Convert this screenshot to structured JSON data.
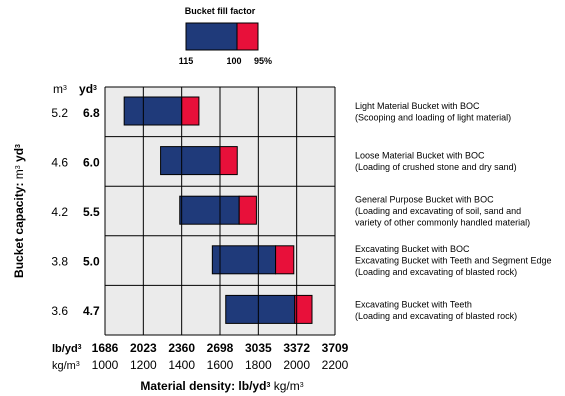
{
  "chart_data": {
    "type": "bar",
    "orientation": "horizontal-range",
    "legend": {
      "title": "Bucket fill factor",
      "labels": [
        "115",
        "100",
        "95%"
      ],
      "colors": {
        "fill_115_100": "#1f3a7a",
        "fill_100_95": "#e8103a"
      }
    },
    "y_axis": {
      "title_prefix": "Bucket capacity:",
      "title_unit1": "m",
      "title_unit1_sup": "3",
      "title_unit2": "yd",
      "title_unit2_sup": "3",
      "col1_header": "m",
      "col1_header_sup": "3",
      "col2_header": "yd",
      "col2_header_sup": "3"
    },
    "x_axis": {
      "title_main": "Material density:",
      "title_unit1": "lb/yd",
      "title_unit1_sup": "3",
      "title_unit2": "kg/m",
      "title_unit2_sup": "3",
      "row1_label": "lb/yd",
      "row1_label_sup": "3",
      "row2_label": "kg/m",
      "row2_label_sup": "3",
      "lb_ticks": [
        "1686",
        "2023",
        "2360",
        "2698",
        "3035",
        "3372",
        "3709"
      ],
      "kg_ticks": [
        "1000",
        "1200",
        "1400",
        "1600",
        "1800",
        "2000",
        "2200"
      ],
      "range": [
        1000,
        2200
      ]
    },
    "grid": true,
    "rows": [
      {
        "m3": "5.2",
        "yd3": "6.8",
        "start": 1100,
        "mid": 1400,
        "end": 1490,
        "title": "Light Material Bucket with BOC",
        "desc": [
          "(Scooping and loading of light material)"
        ]
      },
      {
        "m3": "4.6",
        "yd3": "6.0",
        "start": 1290,
        "mid": 1600,
        "end": 1690,
        "title": "Loose Material Bucket with BOC",
        "desc": [
          "(Loading of crushed stone and dry sand)"
        ]
      },
      {
        "m3": "4.2",
        "yd3": "5.5",
        "start": 1390,
        "mid": 1700,
        "end": 1790,
        "title": "General Purpose Bucket with BOC",
        "desc": [
          "(Loading and excavating of soil, sand and",
          "variety of other commonly handled material)"
        ]
      },
      {
        "m3": "3.8",
        "yd3": "5.0",
        "start": 1560,
        "mid": 1890,
        "end": 1985,
        "title": "Excavating Bucket with BOC",
        "desc": [
          "Excavating Bucket with Teeth and Segment Edge",
          "(Loading and excavating of blasted rock)"
        ]
      },
      {
        "m3": "3.6",
        "yd3": "4.7",
        "start": 1630,
        "mid": 1990,
        "end": 2080,
        "title": "Excavating Bucket with Teeth",
        "desc": [
          "(Loading and excavating of blasted rock)"
        ]
      }
    ]
  }
}
